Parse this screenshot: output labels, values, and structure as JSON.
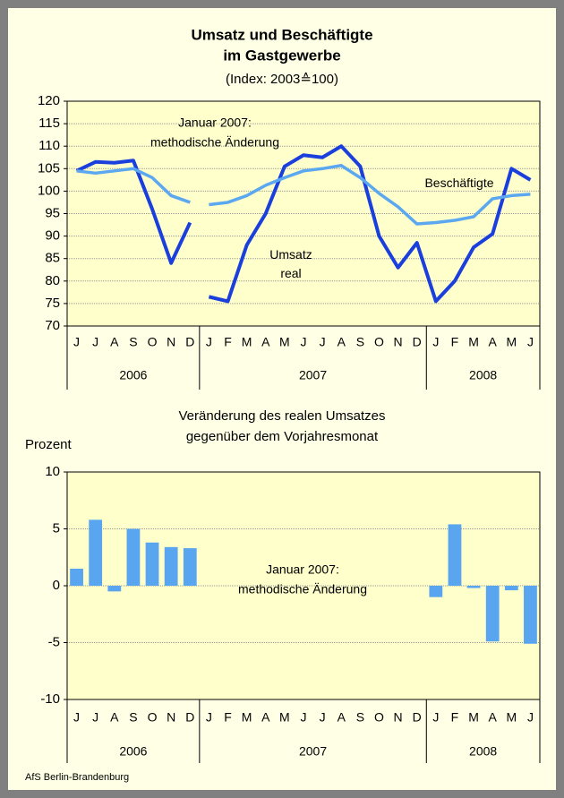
{
  "chart_data": [
    {
      "type": "line",
      "title": [
        "Umsatz und Beschäftigte",
        "im Gastgewerbe"
      ],
      "subtitle": "(Index: 2003≙100)",
      "categories": [
        "J",
        "J",
        "A",
        "S",
        "O",
        "N",
        "D",
        "J",
        "F",
        "M",
        "A",
        "M",
        "J",
        "J",
        "A",
        "S",
        "O",
        "N",
        "D",
        "J",
        "F",
        "M",
        "A",
        "M",
        "J"
      ],
      "groups": [
        {
          "label": "2006",
          "size": 7
        },
        {
          "label": "2007",
          "size": 12
        },
        {
          "label": "2008",
          "size": 6
        }
      ],
      "gap_after_group": "2006",
      "series": [
        {
          "name": "Umsatz real",
          "color": "#1a3fdc",
          "values": [
            104.5,
            106.5,
            106.3,
            106.8,
            96,
            84,
            93,
            76.5,
            75.5,
            88,
            95,
            105.5,
            108,
            107.5,
            110,
            105.5,
            90,
            83,
            88.5,
            75.5,
            80,
            87.5,
            90.5,
            105,
            102.5
          ]
        },
        {
          "name": "Beschäftigte",
          "color": "#5ca8f0",
          "values": [
            104.5,
            104,
            104.5,
            105,
            103,
            99,
            97.5,
            97,
            97.5,
            99,
            101.3,
            103,
            104.5,
            105,
            105.7,
            103,
            99.5,
            96.5,
            92.7,
            93,
            93.5,
            94.3,
            98.3,
            99,
            99.3
          ]
        }
      ],
      "annotations": [
        [
          "Januar 2007:",
          "methodische Änderung"
        ]
      ],
      "ylim": [
        70,
        120
      ],
      "yticks": [
        70,
        75,
        80,
        85,
        90,
        95,
        100,
        105,
        110,
        115,
        120
      ],
      "grid": true
    },
    {
      "type": "bar",
      "title": [
        "Veränderung des realen Umsatzes",
        "gegenüber dem Vorjahresmonat"
      ],
      "y_label": "Prozent",
      "categories": [
        "J",
        "J",
        "A",
        "S",
        "O",
        "N",
        "D",
        "J",
        "F",
        "M",
        "A",
        "M",
        "J",
        "J",
        "A",
        "S",
        "O",
        "N",
        "D",
        "J",
        "F",
        "M",
        "A",
        "M",
        "J"
      ],
      "groups": [
        {
          "label": "2006",
          "size": 7
        },
        {
          "label": "2007",
          "size": 12
        },
        {
          "label": "2008",
          "size": 6
        }
      ],
      "color": "#5aa5f0",
      "values": [
        1.5,
        5.8,
        -0.5,
        5.0,
        3.8,
        3.4,
        3.3,
        null,
        null,
        null,
        null,
        null,
        null,
        null,
        null,
        null,
        null,
        null,
        null,
        -1.0,
        5.4,
        -0.2,
        -4.9,
        -0.4,
        -5.1
      ],
      "annotations": [
        [
          "Januar 2007:",
          "methodische Änderung"
        ]
      ],
      "ylim": [
        -10,
        10
      ],
      "yticks": [
        -10,
        -5,
        0,
        5,
        10
      ],
      "grid": true
    }
  ],
  "footer": "AfS Berlin-Brandenburg"
}
